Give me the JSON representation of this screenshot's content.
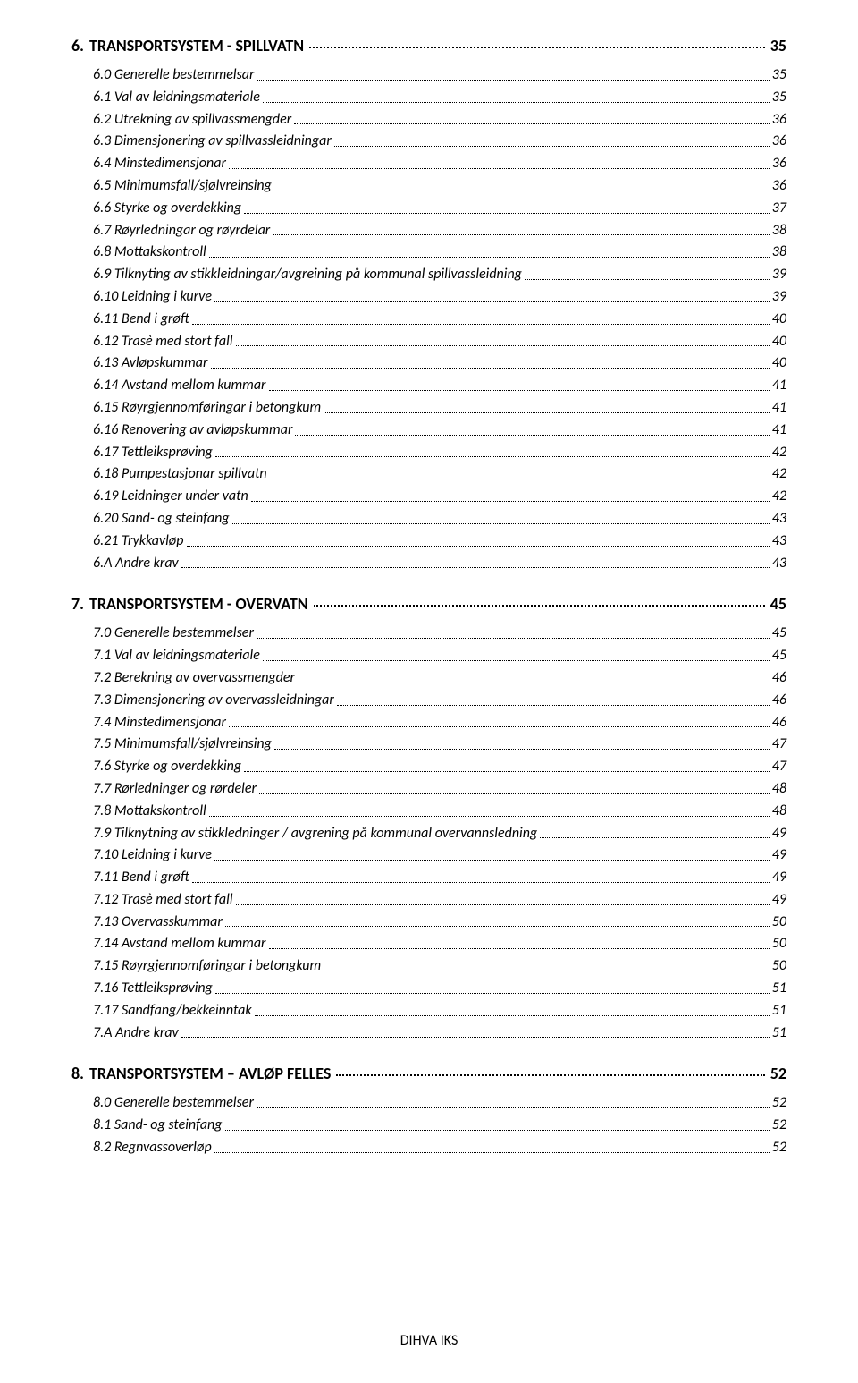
{
  "sections": [
    {
      "heading_num": "6.",
      "heading_title": "TRANSPORTSYSTEM - SPILLVATN",
      "heading_page": "35",
      "items": [
        {
          "label": "6.0 Generelle bestemmelsar",
          "page": "35"
        },
        {
          "label": "6.1 Val av leidningsmateriale",
          "page": "35"
        },
        {
          "label": "6.2 Utrekning av spillvassmengder",
          "page": "36"
        },
        {
          "label": "6.3 Dimensjonering av spillvassleidningar",
          "page": "36"
        },
        {
          "label": "6.4 Minstedimensjonar",
          "page": "36"
        },
        {
          "label": "6.5 Minimumsfall/sjølvreinsing",
          "page": "36"
        },
        {
          "label": "6.6 Styrke og overdekking",
          "page": "37"
        },
        {
          "label": "6.7 Røyrledningar og røyrdelar",
          "page": "38"
        },
        {
          "label": "6.8 Mottakskontroll",
          "page": "38"
        },
        {
          "label": "6.9 Tilknyting av stikkleidningar/avgreining på kommunal spillvassleidning",
          "page": "39"
        },
        {
          "label": "6.10 Leidning i kurve",
          "page": "39"
        },
        {
          "label": "6.11 Bend i grøft",
          "page": "40"
        },
        {
          "label": "6.12 Trasè med stort fall",
          "page": "40"
        },
        {
          "label": "6.13 Avløpskummar",
          "page": "40"
        },
        {
          "label": "6.14 Avstand mellom kummar",
          "page": "41"
        },
        {
          "label": "6.15 Røyrgjennomføringar i betongkum",
          "page": "41"
        },
        {
          "label": "6.16 Renovering av avløpskummar",
          "page": "41"
        },
        {
          "label": "6.17 Tettleiksprøving",
          "page": "42"
        },
        {
          "label": "6.18 Pumpestasjonar spillvatn",
          "page": "42"
        },
        {
          "label": "6.19 Leidninger under vatn",
          "page": "42"
        },
        {
          "label": "6.20 Sand- og steinfang",
          "page": "43"
        },
        {
          "label": "6.21 Trykkavløp",
          "page": "43"
        },
        {
          "label": "6.A Andre krav",
          "page": "43"
        }
      ]
    },
    {
      "heading_num": "7.",
      "heading_title": "TRANSPORTSYSTEM - OVERVATN",
      "heading_page": "45",
      "items": [
        {
          "label": "7.0 Generelle bestemmelser",
          "page": "45"
        },
        {
          "label": "7.1 Val av leidningsmateriale",
          "page": "45"
        },
        {
          "label": "7.2 Berekning av overvassmengder",
          "page": "46"
        },
        {
          "label": "7.3 Dimensjonering av overvassleidningar",
          "page": "46"
        },
        {
          "label": "7.4 Minstedimensjonar",
          "page": "46"
        },
        {
          "label": "7.5 Minimumsfall/sjølvreinsing",
          "page": "47"
        },
        {
          "label": "7.6 Styrke og overdekking",
          "page": "47"
        },
        {
          "label": "7.7 Rørledninger og rørdeler",
          "page": "48"
        },
        {
          "label": "7.8 Mottakskontroll",
          "page": "48"
        },
        {
          "label": "7.9 Tilknytning av stikkledninger / avgrening på kommunal overvannsledning",
          "page": "49"
        },
        {
          "label": "7.10 Leidning i kurve",
          "page": "49"
        },
        {
          "label": "7.11 Bend i grøft",
          "page": "49"
        },
        {
          "label": "7.12 Trasè med stort fall",
          "page": "49"
        },
        {
          "label": "7.13 Overvasskummar",
          "page": "50"
        },
        {
          "label": "7.14 Avstand mellom kummar",
          "page": "50"
        },
        {
          "label": "7.15 Røyrgjennomføringar i betongkum",
          "page": "50"
        },
        {
          "label": "7.16 Tettleiksprøving",
          "page": "51"
        },
        {
          "label": "7.17 Sandfang/bekkeinntak",
          "page": "51"
        },
        {
          "label": "7.A Andre krav",
          "page": "51"
        }
      ]
    },
    {
      "heading_num": "8.",
      "heading_title": "TRANSPORTSYSTEM – AVLØP FELLES",
      "heading_page": "52",
      "items": [
        {
          "label": "8.0 Generelle bestemmelser",
          "page": "52"
        },
        {
          "label": "8.1 Sand- og steinfang",
          "page": "52"
        },
        {
          "label": "8.2 Regnvassoverløp",
          "page": "52"
        }
      ]
    }
  ],
  "footer_text": "DIHVA IKS",
  "colors": {
    "text": "#000000",
    "background": "#ffffff"
  },
  "typography": {
    "heading_fontsize": 18,
    "heading_weight": "bold",
    "item_fontsize": 16,
    "item_style": "italic",
    "footer_fontsize": 16
  }
}
